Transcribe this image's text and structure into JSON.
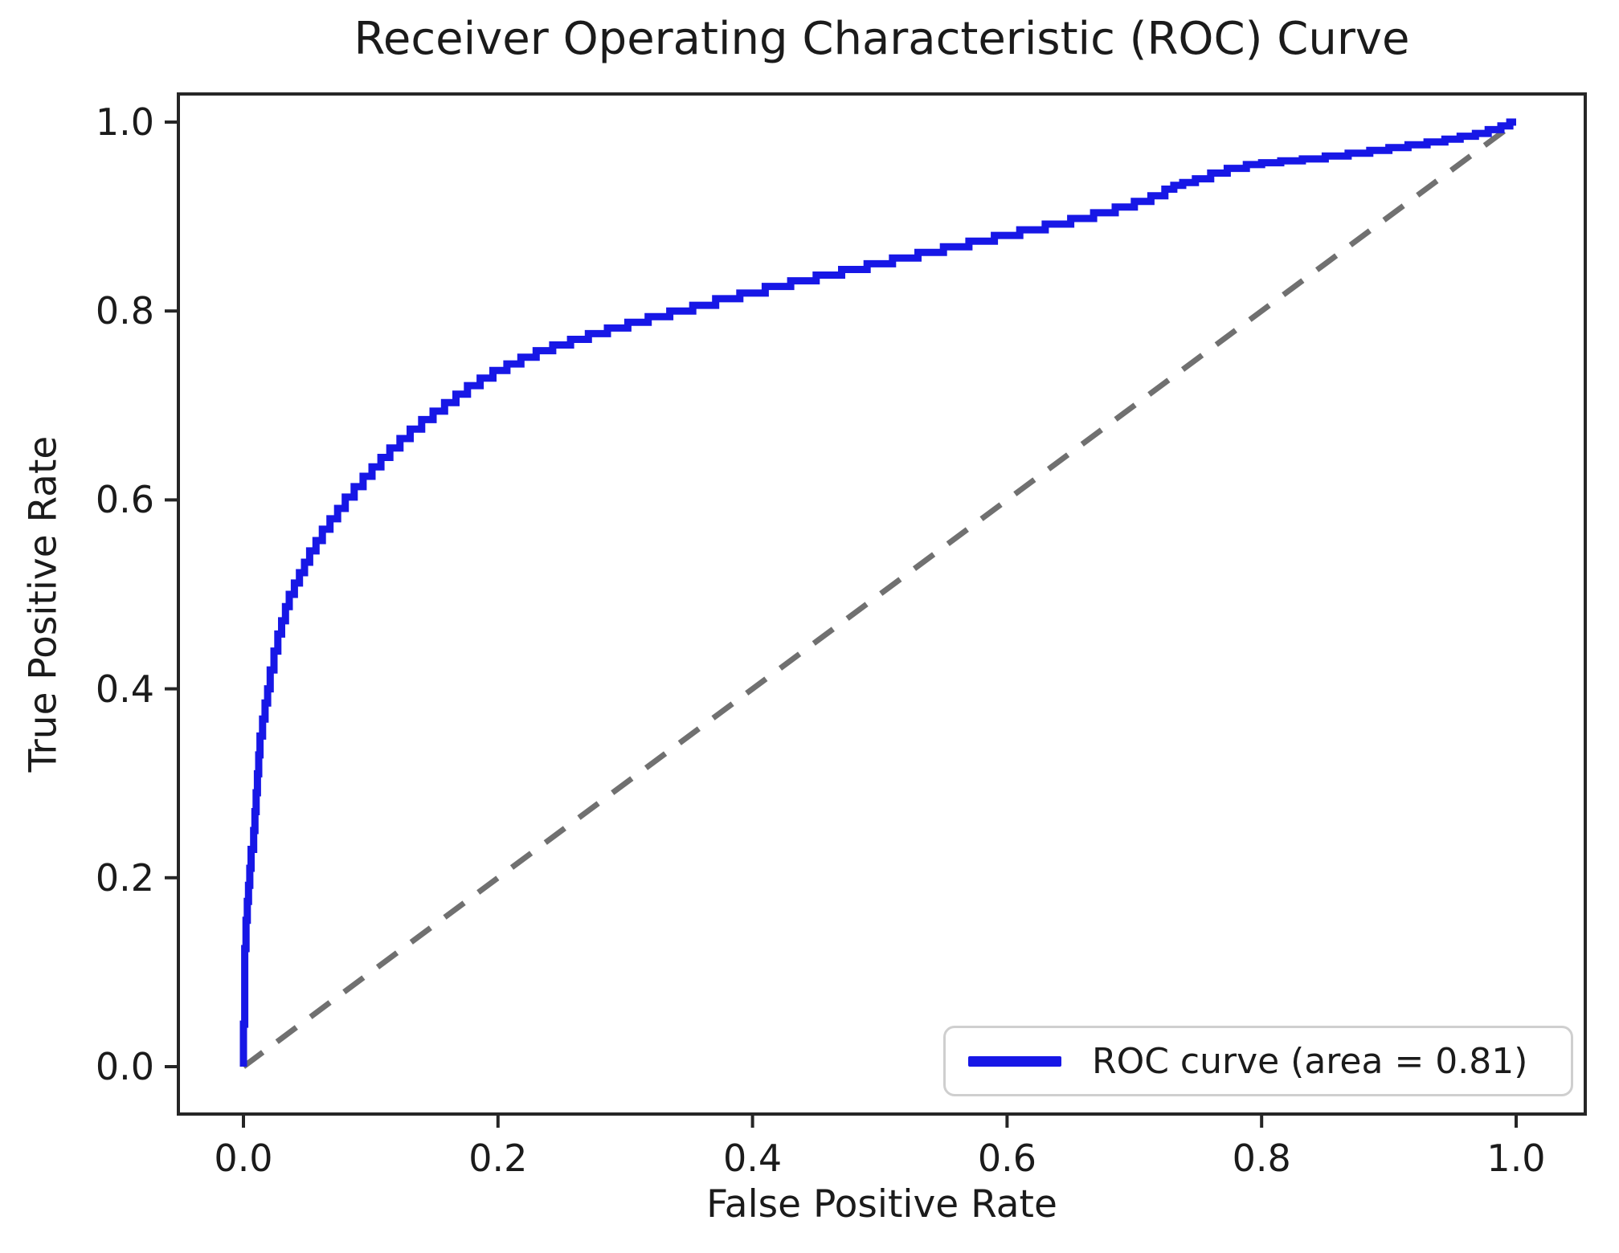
{
  "chart_data": {
    "type": "line",
    "title": "Receiver Operating Characteristic (ROC) Curve",
    "xlabel": "False Positive Rate",
    "ylabel": "True Positive Rate",
    "xlim": [
      -0.05,
      1.05
    ],
    "ylim": [
      -0.05,
      1.05
    ],
    "grid": false,
    "x_tick_values": [
      0.0,
      0.2,
      0.4,
      0.6,
      0.8,
      1.0
    ],
    "x_tick_labels": [
      "0.0",
      "0.2",
      "0.4",
      "0.6",
      "0.8",
      "1.0"
    ],
    "y_tick_values": [
      0.0,
      0.2,
      0.4,
      0.6,
      0.8,
      1.0
    ],
    "y_tick_labels": [
      "0.0",
      "0.2",
      "0.4",
      "0.6",
      "0.8",
      "1.0"
    ],
    "auc": 0.81,
    "legend": {
      "label": "ROC curve (area = 0.81)",
      "position": "lower right"
    },
    "colors": {
      "roc_curve": "#1717e6",
      "chance_line": "#707070",
      "axes": "#262626",
      "text": "#1b1b1b",
      "legend_border": "#cfcfcf"
    },
    "series": [
      {
        "name": "ROC curve (area = 0.81)",
        "style": "solid",
        "color": "#1717e6",
        "points": [
          [
            0.0,
            0.0
          ],
          [
            0.001,
            0.045
          ],
          [
            0.001,
            0.09
          ],
          [
            0.002,
            0.125
          ],
          [
            0.003,
            0.155
          ],
          [
            0.004,
            0.175
          ],
          [
            0.005,
            0.192
          ],
          [
            0.006,
            0.21
          ],
          [
            0.008,
            0.23
          ],
          [
            0.009,
            0.25
          ],
          [
            0.01,
            0.27
          ],
          [
            0.011,
            0.29
          ],
          [
            0.012,
            0.31
          ],
          [
            0.013,
            0.33
          ],
          [
            0.015,
            0.35
          ],
          [
            0.017,
            0.368
          ],
          [
            0.019,
            0.385
          ],
          [
            0.021,
            0.4
          ],
          [
            0.024,
            0.42
          ],
          [
            0.027,
            0.44
          ],
          [
            0.03,
            0.458
          ],
          [
            0.033,
            0.472
          ],
          [
            0.036,
            0.487
          ],
          [
            0.04,
            0.5
          ],
          [
            0.044,
            0.512
          ],
          [
            0.048,
            0.523
          ],
          [
            0.052,
            0.534
          ],
          [
            0.057,
            0.546
          ],
          [
            0.062,
            0.557
          ],
          [
            0.068,
            0.569
          ],
          [
            0.074,
            0.58
          ],
          [
            0.08,
            0.591
          ],
          [
            0.087,
            0.603
          ],
          [
            0.094,
            0.614
          ],
          [
            0.101,
            0.625
          ],
          [
            0.108,
            0.635
          ],
          [
            0.115,
            0.645
          ],
          [
            0.123,
            0.655
          ],
          [
            0.131,
            0.665
          ],
          [
            0.14,
            0.675
          ],
          [
            0.149,
            0.685
          ],
          [
            0.158,
            0.694
          ],
          [
            0.167,
            0.703
          ],
          [
            0.176,
            0.712
          ],
          [
            0.186,
            0.721
          ],
          [
            0.196,
            0.729
          ],
          [
            0.207,
            0.737
          ],
          [
            0.218,
            0.744
          ],
          [
            0.23,
            0.751
          ],
          [
            0.243,
            0.758
          ],
          [
            0.257,
            0.764
          ],
          [
            0.271,
            0.77
          ],
          [
            0.286,
            0.776
          ],
          [
            0.302,
            0.782
          ],
          [
            0.318,
            0.788
          ],
          [
            0.335,
            0.794
          ],
          [
            0.353,
            0.8
          ],
          [
            0.371,
            0.806
          ],
          [
            0.39,
            0.813
          ],
          [
            0.41,
            0.819
          ],
          [
            0.43,
            0.826
          ],
          [
            0.45,
            0.832
          ],
          [
            0.47,
            0.838
          ],
          [
            0.49,
            0.844
          ],
          [
            0.51,
            0.85
          ],
          [
            0.53,
            0.856
          ],
          [
            0.55,
            0.862
          ],
          [
            0.57,
            0.868
          ],
          [
            0.59,
            0.874
          ],
          [
            0.61,
            0.88
          ],
          [
            0.63,
            0.886
          ],
          [
            0.65,
            0.892
          ],
          [
            0.668,
            0.898
          ],
          [
            0.685,
            0.904
          ],
          [
            0.7,
            0.91
          ],
          [
            0.713,
            0.916
          ],
          [
            0.724,
            0.922
          ],
          [
            0.731,
            0.929
          ],
          [
            0.738,
            0.933
          ],
          [
            0.748,
            0.936
          ],
          [
            0.76,
            0.94
          ],
          [
            0.773,
            0.946
          ],
          [
            0.788,
            0.951
          ],
          [
            0.8,
            0.955
          ],
          [
            0.815,
            0.957
          ],
          [
            0.832,
            0.959
          ],
          [
            0.85,
            0.961
          ],
          [
            0.868,
            0.964
          ],
          [
            0.885,
            0.967
          ],
          [
            0.9,
            0.97
          ],
          [
            0.915,
            0.973
          ],
          [
            0.93,
            0.976
          ],
          [
            0.944,
            0.979
          ],
          [
            0.956,
            0.982
          ],
          [
            0.968,
            0.985
          ],
          [
            0.978,
            0.988
          ],
          [
            0.988,
            0.992
          ],
          [
            0.995,
            0.996
          ],
          [
            1.0,
            1.0
          ]
        ]
      },
      {
        "name": "chance diagonal",
        "style": "dashed",
        "color": "#707070",
        "points": [
          [
            0.0,
            0.0
          ],
          [
            1.0,
            1.0
          ]
        ]
      }
    ]
  }
}
